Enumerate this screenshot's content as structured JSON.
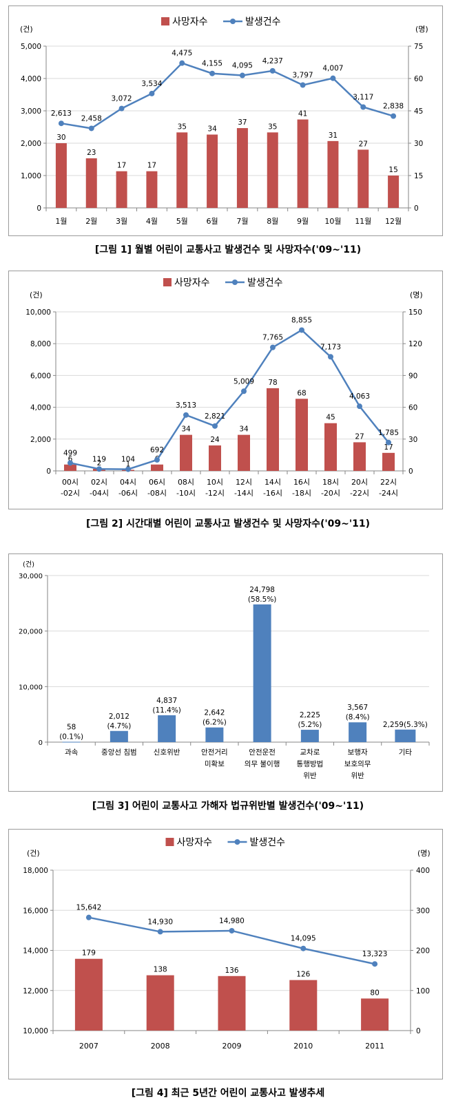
{
  "colors": {
    "bar": "#C0504D",
    "line": "#4F81BD",
    "bar3": "#4F81BD",
    "grid": "#D9D9D9",
    "axis": "#868686"
  },
  "legend": {
    "bar_label": "사망자수",
    "line_label": "발생건수"
  },
  "captions": {
    "fig1": "[그림 1] 월별 어린이 교통사고 발생건수 및 사망자수('09~'11)",
    "fig2": "[그림 2] 시간대별 어린이 교통사고 발생건수 및 사망자수('09~'11)",
    "fig3": "[그림 3] 어린이 교통사고 가해자 법규위반별 발생건수('09~'11)",
    "fig4": "[그림 4] 최근 5년간 어린이 교통사고 발생추세"
  },
  "chart_data": [
    {
      "id": "fig1",
      "type": "bar+line",
      "left_unit": "(건)",
      "right_unit": "(명)",
      "categories": [
        [
          "1월"
        ],
        [
          "2월"
        ],
        [
          "3월"
        ],
        [
          "4월"
        ],
        [
          "5월"
        ],
        [
          "6월"
        ],
        [
          "7월"
        ],
        [
          "8월"
        ],
        [
          "9월"
        ],
        [
          "10월"
        ],
        [
          "11월"
        ],
        [
          "12월"
        ]
      ],
      "series": [
        {
          "name": "사망자수",
          "type": "bar",
          "axis": "right",
          "values": [
            30,
            23,
            17,
            17,
            35,
            34,
            37,
            35,
            41,
            31,
            27,
            15
          ]
        },
        {
          "name": "발생건수",
          "type": "line",
          "axis": "left",
          "values": [
            2613,
            2458,
            3072,
            3534,
            4475,
            4155,
            4095,
            4237,
            3797,
            4007,
            3117,
            2838
          ]
        }
      ],
      "left_axis": {
        "min": 0,
        "max": 5000,
        "ticks": [
          0,
          1000,
          2000,
          3000,
          4000,
          5000
        ],
        "tick_labels": [
          "0",
          "1,000",
          "2,000",
          "3,000",
          "4,000",
          "5,000"
        ]
      },
      "right_axis": {
        "min": 0,
        "max": 75,
        "ticks": [
          0,
          15,
          30,
          45,
          60,
          75
        ],
        "tick_labels": [
          "0",
          "15",
          "30",
          "45",
          "60",
          "75"
        ]
      },
      "legend_position": "top-center"
    },
    {
      "id": "fig2",
      "type": "bar+line",
      "left_unit": "(건)",
      "right_unit": "(명)",
      "categories": [
        [
          "00시",
          "-02시"
        ],
        [
          "02시",
          "-04시"
        ],
        [
          "04시",
          "-06시"
        ],
        [
          "06시",
          "-08시"
        ],
        [
          "08시",
          "-10시"
        ],
        [
          "10시",
          "-12시"
        ],
        [
          "12시",
          "-14시"
        ],
        [
          "14시",
          "-16시"
        ],
        [
          "16시",
          "-18시"
        ],
        [
          "18시",
          "-20시"
        ],
        [
          "20시",
          "-22시"
        ],
        [
          "22시",
          "-24시"
        ]
      ],
      "series": [
        {
          "name": "사망자수",
          "type": "bar",
          "axis": "right",
          "values": [
            6,
            2,
            1,
            6,
            34,
            24,
            34,
            78,
            68,
            45,
            27,
            17
          ]
        },
        {
          "name": "발생건수",
          "type": "line",
          "axis": "left",
          "values": [
            499,
            119,
            104,
            692,
            3513,
            2821,
            5009,
            7765,
            8855,
            7173,
            4063,
            1785
          ]
        }
      ],
      "left_axis": {
        "min": 0,
        "max": 10000,
        "ticks": [
          0,
          2000,
          4000,
          6000,
          8000,
          10000
        ],
        "tick_labels": [
          "0",
          "2,000",
          "4,000",
          "6,000",
          "8,000",
          "10,000"
        ]
      },
      "right_axis": {
        "min": 0,
        "max": 150,
        "ticks": [
          0,
          30,
          60,
          90,
          120,
          150
        ],
        "tick_labels": [
          "0",
          "30",
          "60",
          "90",
          "120",
          "150"
        ]
      },
      "legend_position": "top-center"
    },
    {
      "id": "fig3",
      "type": "bar",
      "left_unit": "(건)",
      "categories": [
        [
          "과속"
        ],
        [
          "중앙선 침범"
        ],
        [
          "신호위반"
        ],
        [
          "안전거리",
          "미확보"
        ],
        [
          "안전운전",
          "의무 불이행"
        ],
        [
          "교차로",
          "통행방법",
          "위반"
        ],
        [
          "보행자",
          "보호의무",
          "위반"
        ],
        [
          "기타"
        ]
      ],
      "values": [
        58,
        2012,
        4837,
        2642,
        24798,
        2225,
        3567,
        2259
      ],
      "value_labels": [
        [
          "58",
          "(0.1%)"
        ],
        [
          "2,012",
          "(4.7%)"
        ],
        [
          "4,837",
          "(11.4%)"
        ],
        [
          "2,642",
          "(6.2%)"
        ],
        [
          "24,798",
          "(58.5%)"
        ],
        [
          "2,225",
          "(5.2%)"
        ],
        [
          "3,567",
          "(8.4%)"
        ],
        [
          "2,259(5.3%)"
        ]
      ],
      "left_axis": {
        "min": 0,
        "max": 30000,
        "ticks": [
          0,
          10000,
          20000,
          30000
        ],
        "tick_labels": [
          "0",
          "10,000",
          "20,000",
          "30,000"
        ]
      }
    },
    {
      "id": "fig4",
      "type": "bar+line",
      "left_unit": "(건)",
      "right_unit": "(명)",
      "categories": [
        [
          "2007"
        ],
        [
          "2008"
        ],
        [
          "2009"
        ],
        [
          "2010"
        ],
        [
          "2011"
        ]
      ],
      "series": [
        {
          "name": "사망자수",
          "type": "bar",
          "axis": "right",
          "values": [
            179,
            138,
            136,
            126,
            80
          ]
        },
        {
          "name": "발생건수",
          "type": "line",
          "axis": "left",
          "values": [
            15642,
            14930,
            14980,
            14095,
            13323
          ]
        }
      ],
      "left_axis": {
        "min": 10000,
        "max": 18000,
        "ticks": [
          10000,
          12000,
          14000,
          16000,
          18000
        ],
        "tick_labels": [
          "10,000",
          "12,000",
          "14,000",
          "16,000",
          "18,000"
        ]
      },
      "right_axis": {
        "min": 0,
        "max": 400,
        "ticks": [
          0,
          100,
          200,
          300,
          400
        ],
        "tick_labels": [
          "0",
          "100",
          "200",
          "300",
          "400"
        ]
      },
      "legend_position": "top-center"
    }
  ]
}
